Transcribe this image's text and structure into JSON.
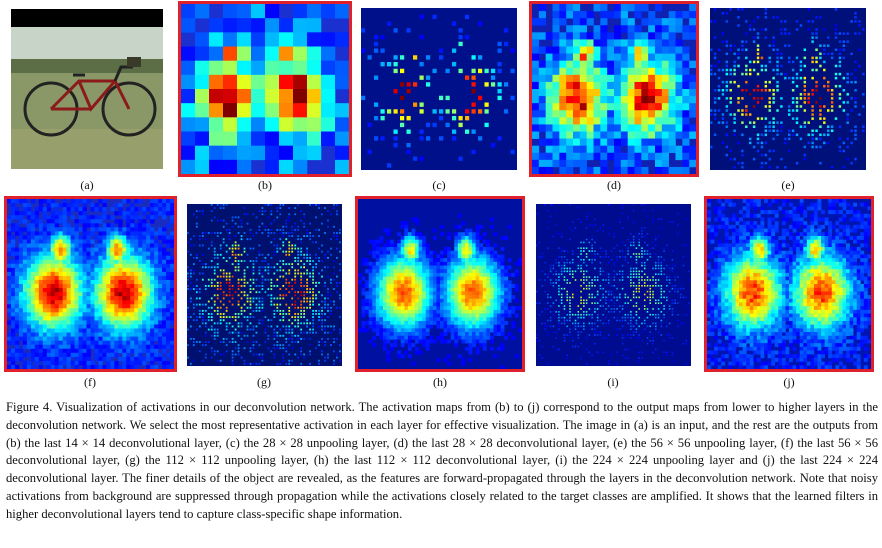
{
  "figure": {
    "panels": [
      {
        "id": "a",
        "label": "(a)",
        "kind": "input-photo",
        "highlighted": false
      },
      {
        "id": "b",
        "label": "(b)",
        "kind": "activation-14x14-deconv",
        "highlighted": true
      },
      {
        "id": "c",
        "label": "(c)",
        "kind": "activation-28x28-unpool",
        "highlighted": false
      },
      {
        "id": "d",
        "label": "(d)",
        "kind": "activation-28x28-deconv",
        "highlighted": true
      },
      {
        "id": "e",
        "label": "(e)",
        "kind": "activation-56x56-unpool",
        "highlighted": false
      },
      {
        "id": "f",
        "label": "(f)",
        "kind": "activation-56x56-deconv",
        "highlighted": true
      },
      {
        "id": "g",
        "label": "(g)",
        "kind": "activation-112x112-unpool",
        "highlighted": false
      },
      {
        "id": "h",
        "label": "(h)",
        "kind": "activation-112x112-deconv",
        "highlighted": true
      },
      {
        "id": "i",
        "label": "(i)",
        "kind": "activation-224x224-unpool",
        "highlighted": false
      },
      {
        "id": "j",
        "label": "(j)",
        "kind": "activation-224x224-deconv",
        "highlighted": true
      }
    ],
    "highlight_color": "#e0202a",
    "caption": "Figure 4. Visualization of activations in our deconvolution network. The activation maps from (b) to (j) correspond to the output maps from lower to higher layers in the deconvolution network. We select the most representative activation in each layer for effective visualization. The image in (a) is an input, and the rest are the outputs from (b) the last 14 × 14 deconvolutional layer, (c) the 28 × 28 unpooling layer, (d) the last 28 × 28 deconvolutional layer, (e) the 56 × 56 unpooling layer, (f) the last 56 × 56 deconvolutional layer, (g) the 112 × 112 unpooling layer, (h) the last 112 × 112 deconvolutional layer, (i) the 224 × 224 unpooling layer and (j) the last 224 × 224 deconvolutional layer. The finer details of the object are revealed, as the features are forward-propagated through the layers in the deconvolution network. Note that noisy activations from background are suppressed through propagation while the activations closely related to the target classes are amplified. It shows that the learned filters in higher deconvolutional layers tend to capture class-specific shape information."
  }
}
